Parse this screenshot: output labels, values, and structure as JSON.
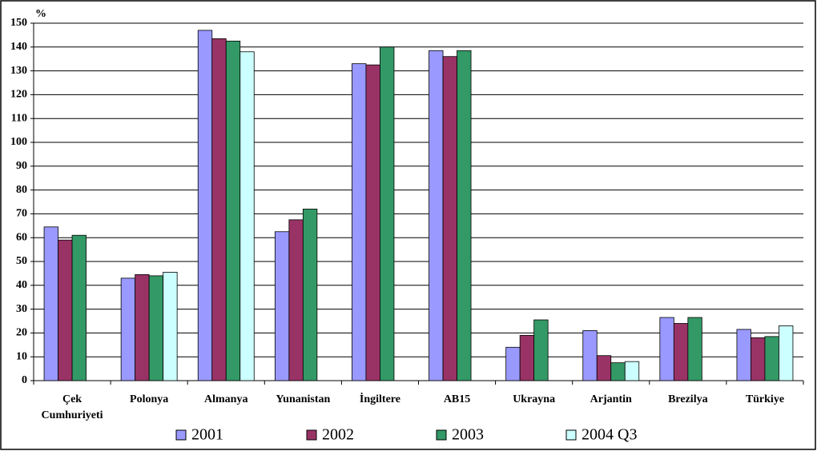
{
  "chart_data": {
    "type": "bar",
    "y_label": "%",
    "categories": [
      "Çek Cumhuriyeti",
      "Polonya",
      "Almanya",
      "Yunanistan",
      "İngiltere",
      "AB15",
      "Ukrayna",
      "Arjantin",
      "Brezilya",
      "Türkiye"
    ],
    "series": [
      {
        "name": "2001",
        "color": "#9999ff",
        "values": [
          64.5,
          43,
          147,
          62.5,
          133,
          138.5,
          14,
          21,
          26.5,
          21.5
        ]
      },
      {
        "name": "2002",
        "color": "#993366",
        "values": [
          59,
          44.5,
          143.5,
          67.5,
          132.5,
          136,
          19,
          10.5,
          24,
          18
        ]
      },
      {
        "name": "2003",
        "color": "#339966",
        "values": [
          61,
          44,
          142.5,
          72,
          140,
          138.5,
          25.5,
          7.5,
          26.5,
          18.5
        ]
      },
      {
        "name": "2004 Q3",
        "color": "#ccffff",
        "values": [
          null,
          45.5,
          138,
          null,
          null,
          null,
          null,
          8,
          null,
          23
        ]
      }
    ],
    "ylim": [
      0,
      150
    ],
    "yticks": [
      0,
      10,
      20,
      30,
      40,
      50,
      60,
      70,
      80,
      90,
      100,
      110,
      120,
      130,
      140,
      150
    ],
    "grid": true
  }
}
